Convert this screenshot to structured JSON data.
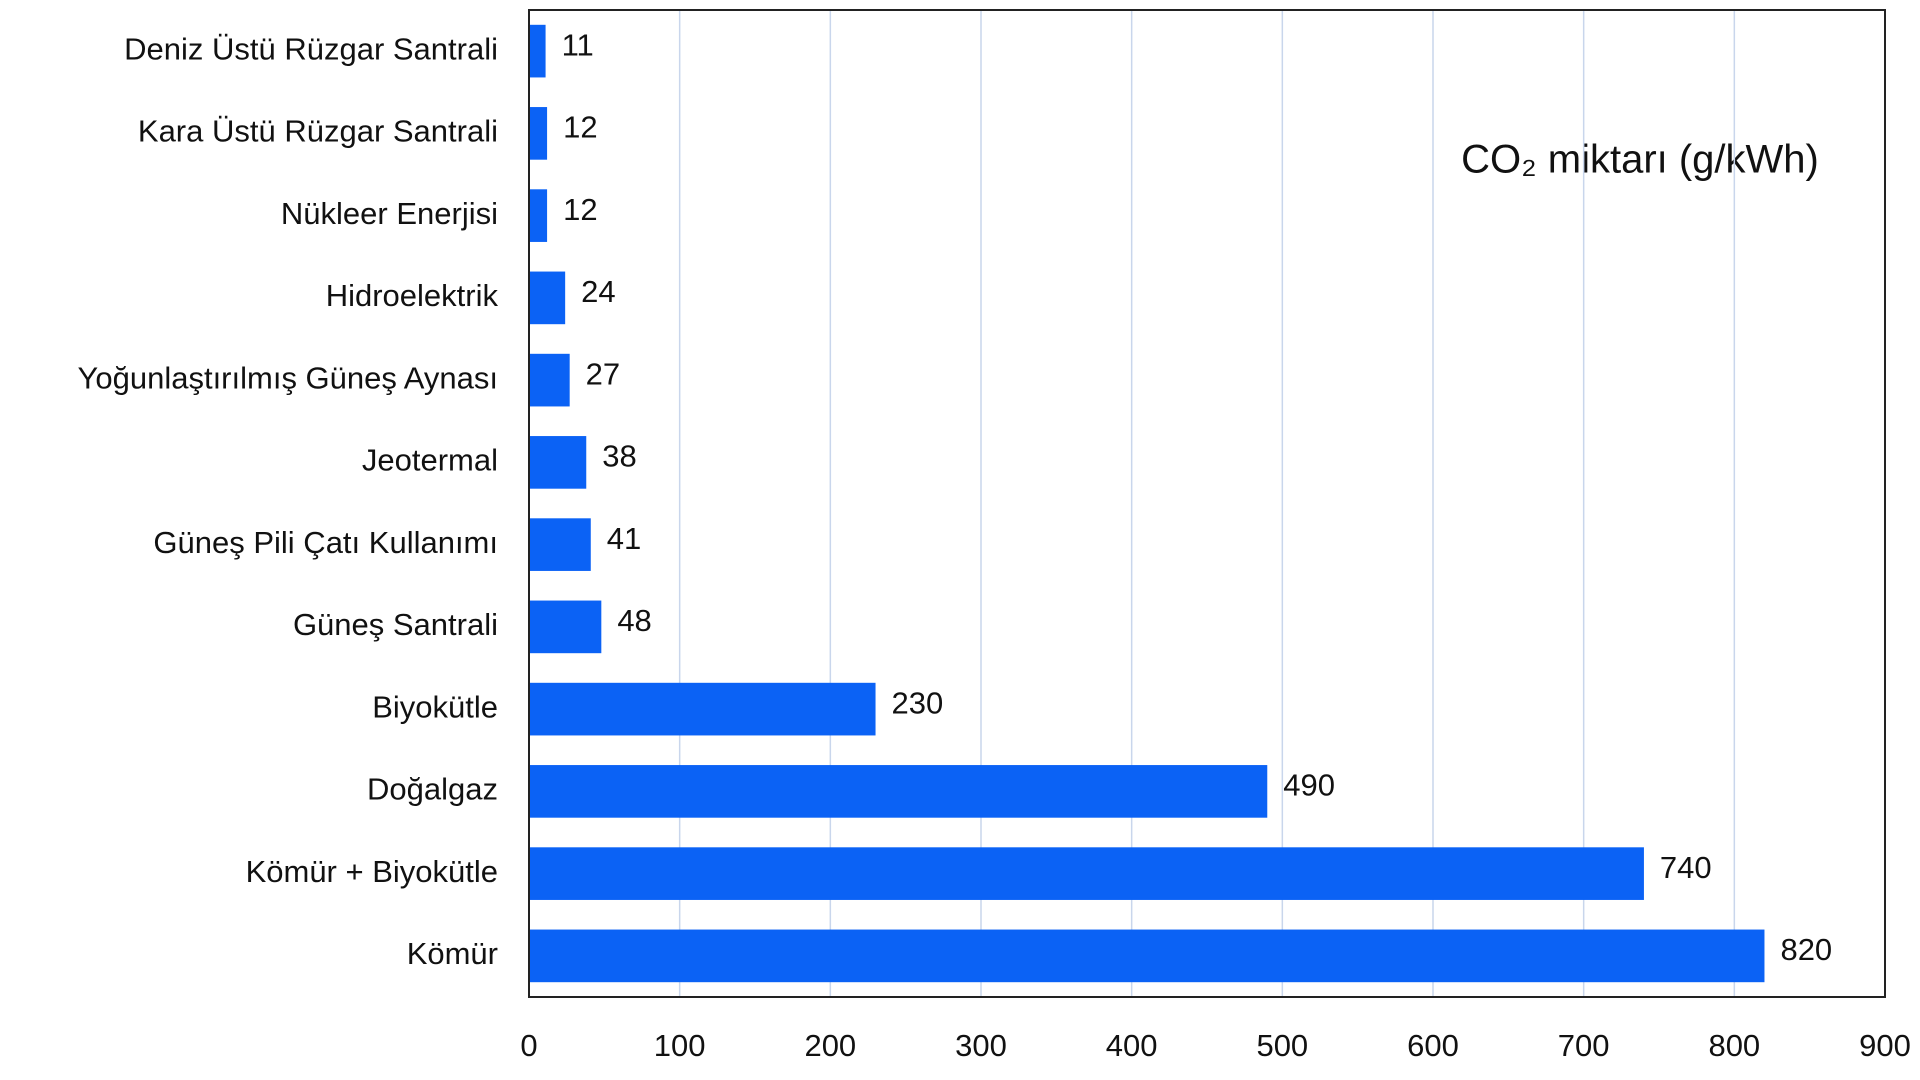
{
  "chart_data": {
    "type": "hbar",
    "annotation": "CO₂ miktarı (g/kWh)",
    "categories": [
      "Deniz Üstü Rüzgar Santrali",
      "Kara Üstü Rüzgar Santrali",
      "Nükleer Enerjisi",
      "Hidroelektrik",
      "Yoğunlaştırılmış Güneş Aynası",
      "Jeotermal",
      "Güneş Pili Çatı Kullanımı",
      "Güneş Santrali",
      "Biyokütle",
      "Doğalgaz",
      "Kömür + Biyokütle",
      "Kömür"
    ],
    "values": [
      11,
      12,
      12,
      24,
      27,
      38,
      41,
      48,
      230,
      490,
      740,
      820
    ],
    "color": "#0b62f5",
    "xlim": [
      0,
      900
    ],
    "xticks": [
      0,
      100,
      200,
      300,
      400,
      500,
      600,
      700,
      800,
      900
    ],
    "grid": true
  }
}
